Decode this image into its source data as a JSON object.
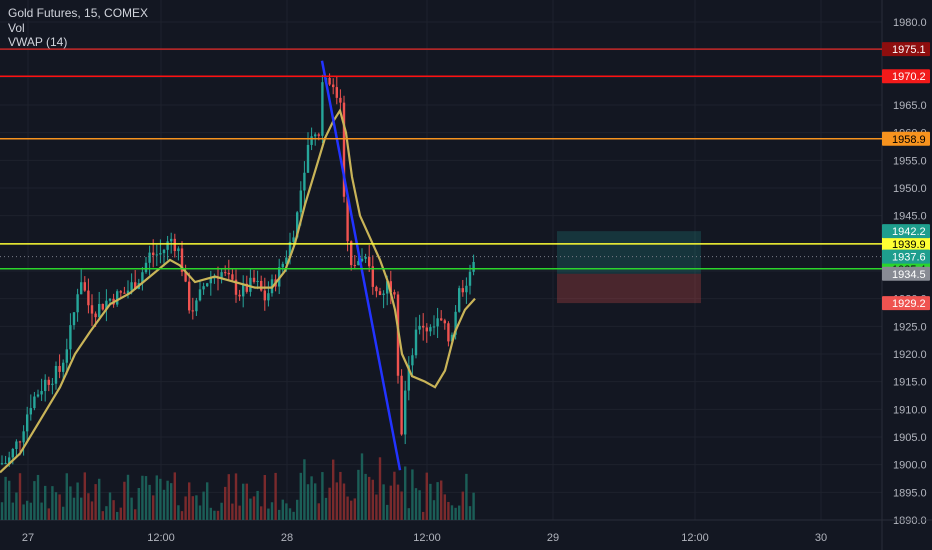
{
  "header": {
    "symbol_line": "Gold Futures, 15, COMEX",
    "indicator_vol": "Vol",
    "indicator_vwap": "VWAP (14)"
  },
  "colors": {
    "background": "#131722",
    "grid": "#1e222d",
    "axis_text": "#b2b5be",
    "candle_up": "#26a69a",
    "candle_down": "#ef5350",
    "vol_up": "#1b5e57",
    "vol_down": "#7a2a2c",
    "vwap": "#c9b458",
    "trend": "#2233ff",
    "dotted_price": "#787b86"
  },
  "chart_data": {
    "type": "candlestick",
    "title": "Gold Futures, 15, COMEX",
    "ylim": [
      1890,
      1983
    ],
    "y_ticks": [
      1890.0,
      1895.0,
      1900.0,
      1905.0,
      1910.0,
      1915.0,
      1920.0,
      1925.0,
      1930.0,
      1935.0,
      1940.0,
      1945.0,
      1950.0,
      1955.0,
      1960.0,
      1965.0,
      1970.0,
      1975.0,
      1980.0
    ],
    "x_ticks": [
      "27",
      "12:00",
      "28",
      "12:00",
      "29",
      "12:00",
      "30"
    ],
    "price_path": [
      [
        0,
        1900.2
      ],
      [
        8,
        1900.6
      ],
      [
        20,
        1905
      ],
      [
        30,
        1911
      ],
      [
        45,
        1915
      ],
      [
        60,
        1917
      ],
      [
        72,
        1925
      ],
      [
        80,
        1934.5
      ],
      [
        88,
        1929
      ],
      [
        95,
        1928
      ],
      [
        110,
        1930
      ],
      [
        125,
        1931
      ],
      [
        140,
        1934
      ],
      [
        150,
        1938
      ],
      [
        160,
        1938
      ],
      [
        172,
        1941
      ],
      [
        180,
        1938
      ],
      [
        188,
        1929
      ],
      [
        195,
        1928
      ],
      [
        205,
        1933
      ],
      [
        220,
        1935
      ],
      [
        240,
        1931
      ],
      [
        255,
        1933
      ],
      [
        265,
        1930
      ],
      [
        280,
        1935
      ],
      [
        290,
        1940
      ],
      [
        297,
        1945
      ],
      [
        305,
        1955
      ],
      [
        312,
        1961
      ],
      [
        318,
        1958
      ],
      [
        322,
        1969
      ],
      [
        328,
        1971
      ],
      [
        335,
        1966
      ],
      [
        340,
        1968
      ],
      [
        345,
        1945
      ],
      [
        350,
        1935
      ],
      [
        358,
        1937
      ],
      [
        368,
        1936
      ],
      [
        378,
        1930
      ],
      [
        388,
        1933
      ],
      [
        396,
        1932
      ],
      [
        400,
        1903
      ],
      [
        405,
        1913
      ],
      [
        412,
        1920
      ],
      [
        420,
        1926
      ],
      [
        430,
        1924
      ],
      [
        440,
        1926
      ],
      [
        450,
        1922
      ],
      [
        458,
        1931
      ],
      [
        465,
        1933
      ],
      [
        472,
        1936
      ],
      [
        476,
        1934.5
      ]
    ],
    "vwap_path": [
      [
        0,
        1898.6
      ],
      [
        20,
        1902
      ],
      [
        40,
        1908
      ],
      [
        60,
        1914
      ],
      [
        75,
        1920
      ],
      [
        90,
        1924
      ],
      [
        110,
        1929
      ],
      [
        130,
        1931
      ],
      [
        150,
        1934
      ],
      [
        170,
        1937
      ],
      [
        180,
        1936
      ],
      [
        195,
        1933
      ],
      [
        215,
        1934
      ],
      [
        235,
        1933
      ],
      [
        255,
        1932
      ],
      [
        272,
        1932
      ],
      [
        285,
        1935
      ],
      [
        295,
        1940
      ],
      [
        305,
        1947
      ],
      [
        315,
        1953
      ],
      [
        325,
        1959
      ],
      [
        333,
        1962
      ],
      [
        340,
        1964
      ],
      [
        346,
        1960
      ],
      [
        352,
        1952
      ],
      [
        360,
        1945
      ],
      [
        370,
        1941
      ],
      [
        380,
        1937
      ],
      [
        388,
        1933
      ],
      [
        395,
        1928
      ],
      [
        402,
        1920
      ],
      [
        412,
        1916
      ],
      [
        425,
        1915
      ],
      [
        435,
        1914
      ],
      [
        445,
        1917
      ],
      [
        455,
        1924
      ],
      [
        465,
        1928
      ],
      [
        475,
        1930
      ]
    ],
    "trend_line": [
      [
        322,
        1973
      ],
      [
        400,
        1899
      ]
    ],
    "levels": [
      {
        "price": 1975.1,
        "label": "1975.1",
        "color": "#c62828",
        "label_bg": "#8e0e0e",
        "label_fg": "#ffffff"
      },
      {
        "price": 1970.2,
        "label": "1970.2",
        "color": "#ff1111",
        "label_bg": "#f21a1a",
        "label_fg": "#ffffff"
      },
      {
        "price": 1958.9,
        "label": "1958.9",
        "color": "#f7931e",
        "label_bg": "#f7931e",
        "label_fg": "#000000"
      },
      {
        "price": 1939.9,
        "label": "1939.9",
        "color": "#ffff33",
        "label_bg": "#ffff33",
        "label_fg": "#000000"
      },
      {
        "price": 1935.4,
        "label": "1935.4",
        "color": "#2bd52b",
        "label_bg": "#2bd52b",
        "label_fg": "#000000"
      }
    ],
    "tags": [
      {
        "price": 1942.2,
        "label": "1942.2",
        "bg": "#1e9e8e",
        "fg": "#ffffff"
      },
      {
        "price": 1937.6,
        "label": "1937.6",
        "bg": "#1e9e8e",
        "fg": "#ffffff"
      },
      {
        "price": 1934.5,
        "label": "1934.5",
        "bg": "#888b94",
        "fg": "#ffffff"
      },
      {
        "price": 1929.2,
        "label": "1929.2",
        "bg": "#ef5350",
        "fg": "#ffffff"
      }
    ],
    "last_price": 1937.6,
    "position_tool": {
      "entry": 1934.5,
      "target": 1942.2,
      "stop": 1929.2,
      "target_color": "rgba(38,166,154,0.22)",
      "stop_color": "rgba(239,83,80,0.25)"
    }
  }
}
